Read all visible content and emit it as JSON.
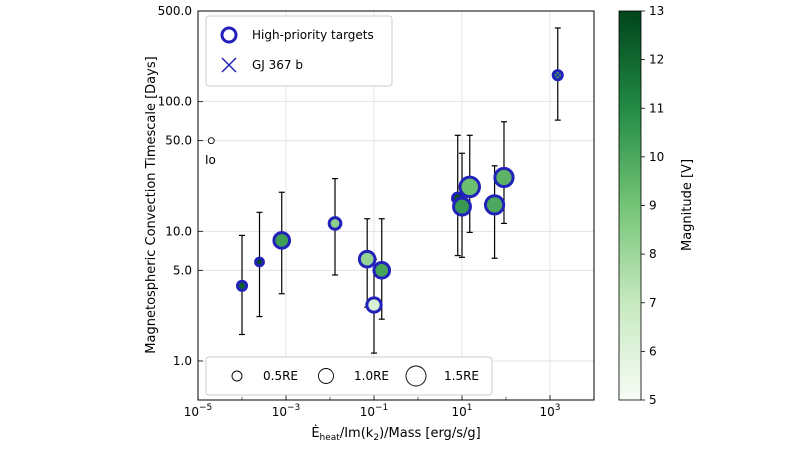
{
  "chart_data": {
    "type": "scatter",
    "xlabel_main": "Ė",
    "xlabel_sub": "heat",
    "xlabel_rest": "/Im(k",
    "xlabel_sub2": "2",
    "xlabel_end": ")/Mass [erg/s/g]",
    "ylabel": "Magnetospheric Convection Timescale [Days]",
    "x_scale": "log",
    "y_scale": "log",
    "xlim": [
      1e-05,
      10000
    ],
    "ylim": [
      0.5,
      500
    ],
    "x_ticks": [
      1e-05,
      0.001,
      0.1,
      10,
      1000
    ],
    "x_tick_base": [
      "10",
      "10",
      "10",
      "10",
      "10"
    ],
    "x_tick_exp": [
      "−5",
      "−3",
      "−1",
      "1",
      "3"
    ],
    "y_ticks": [
      1,
      5,
      10,
      50,
      100,
      500
    ],
    "y_tick_labels": [
      "1.0",
      "5.0",
      "10.0",
      "50.0",
      "100.0",
      "500.0"
    ],
    "grid": true,
    "colorbar": {
      "label": "Magnitude [V]",
      "range": [
        5,
        13
      ],
      "ticks": [
        "5",
        "6",
        "7",
        "8",
        "9",
        "10",
        "11",
        "12",
        "13"
      ],
      "colormap": "Greens"
    },
    "legend_top": {
      "placement": "upper left",
      "entries": [
        "High-priority targets",
        "GJ 367 b"
      ]
    },
    "legend_bottom": {
      "placement": "lower center",
      "entries": [
        "0.5RE",
        "1.0RE",
        "1.5RE"
      ],
      "radii_re": [
        0.5,
        1.0,
        1.5
      ]
    },
    "annotation": {
      "text": "Io",
      "x": 2e-05,
      "y": 50
    },
    "points": [
      {
        "x": 2e-05,
        "y": 50,
        "y_low": 50,
        "y_high": 50,
        "radius_re": 0.5,
        "mag": null,
        "high_priority": false,
        "marker": "io"
      },
      {
        "x": 0.0001,
        "y": 3.8,
        "y_low": 1.6,
        "y_high": 9.3,
        "radius_re": 0.7,
        "mag": 12.2,
        "high_priority": true
      },
      {
        "x": 0.00025,
        "y": 5.8,
        "y_low": 2.2,
        "y_high": 14,
        "radius_re": 0.6,
        "mag": 12.8,
        "high_priority": true
      },
      {
        "x": 0.0008,
        "y": 8.5,
        "y_low": 3.3,
        "y_high": 20,
        "radius_re": 1.2,
        "mag": 10.3,
        "high_priority": true
      },
      {
        "x": 0.013,
        "y": 11.5,
        "y_low": 4.6,
        "y_high": 25.5,
        "radius_re": 0.9,
        "mag": 8.4,
        "high_priority": true
      },
      {
        "x": 0.07,
        "y": 6.1,
        "y_low": 2.6,
        "y_high": 12.5,
        "radius_re": 1.2,
        "mag": 8.2,
        "high_priority": true
      },
      {
        "x": 0.1,
        "y": 2.7,
        "y_low": 1.15,
        "y_high": 6.1,
        "radius_re": 1.1,
        "mag": 6.3,
        "high_priority": true
      },
      {
        "x": 0.15,
        "y": 5,
        "y_low": 2.1,
        "y_high": 12.5,
        "radius_re": 1.2,
        "mag": 10.1,
        "high_priority": true
      },
      {
        "x": 8,
        "y": 18,
        "y_low": 6.5,
        "y_high": 55,
        "radius_re": 0.8,
        "mag": 12.6,
        "high_priority": true
      },
      {
        "x": 10,
        "y": 15.5,
        "y_low": 6.3,
        "y_high": 40,
        "radius_re": 1.3,
        "mag": 10.5,
        "high_priority": true
      },
      {
        "x": 15,
        "y": 22,
        "y_low": 9.8,
        "y_high": 55,
        "radius_re": 1.5,
        "mag": 9.2,
        "high_priority": true
      },
      {
        "x": 55,
        "y": 16,
        "y_low": 6.2,
        "y_high": 32,
        "radius_re": 1.4,
        "mag": 10.0,
        "high_priority": true
      },
      {
        "x": 90,
        "y": 26,
        "y_low": 11.5,
        "y_high": 70,
        "radius_re": 1.4,
        "mag": 9.6,
        "high_priority": true
      },
      {
        "x": 1500,
        "y": 160,
        "y_low": 72,
        "y_high": 370,
        "radius_re": 0.7,
        "mag": 10.2,
        "high_priority": true,
        "gj367": true
      }
    ]
  }
}
